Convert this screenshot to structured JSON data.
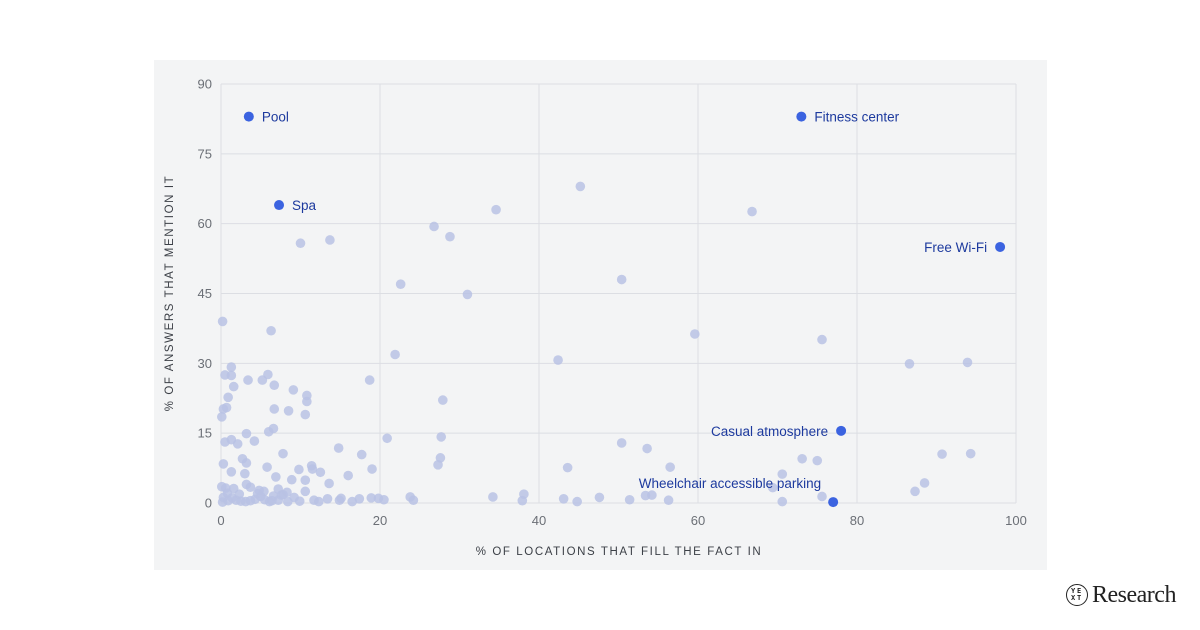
{
  "brand": {
    "logo_text": "Research",
    "logo_mark": [
      "Y",
      "E",
      "X",
      "T"
    ]
  },
  "chart_data": {
    "type": "scatter",
    "title": "",
    "xlabel": "% OF LOCATIONS THAT FILL THE FACT IN",
    "ylabel": "% OF ANSWERS THAT MENTION IT",
    "xlim": [
      0,
      100
    ],
    "ylim": [
      0,
      90
    ],
    "x_ticks": [
      0,
      20,
      40,
      60,
      80,
      100
    ],
    "y_ticks": [
      0,
      15,
      30,
      45,
      60,
      75,
      90
    ],
    "grid": true,
    "colors": {
      "point": "#b9c2e4",
      "highlight": "#3b63e0",
      "highlight_label": "#1d3a9e",
      "grid": "#dcdee3",
      "panel": "#f3f4f5"
    },
    "highlighted": [
      {
        "label": "Pool",
        "x": 3.5,
        "y": 83,
        "label_side": "right"
      },
      {
        "label": "Fitness center",
        "x": 73,
        "y": 83,
        "label_side": "right"
      },
      {
        "label": "Spa",
        "x": 7.3,
        "y": 64,
        "label_side": "right"
      },
      {
        "label": "Free Wi-Fi",
        "x": 98,
        "y": 55,
        "label_side": "left"
      },
      {
        "label": "Casual atmosphere",
        "x": 78,
        "y": 15.5,
        "label_side": "left"
      },
      {
        "label": "Wheelchair accessible parking",
        "x": 77,
        "y": 0.2,
        "label_side": "above-left"
      }
    ],
    "points": [
      [
        45.2,
        68
      ],
      [
        34.6,
        63
      ],
      [
        66.8,
        62.6
      ],
      [
        26.8,
        59.4
      ],
      [
        28.8,
        57.2
      ],
      [
        10,
        55.8
      ],
      [
        13.7,
        56.5
      ],
      [
        50.4,
        48
      ],
      [
        22.6,
        47
      ],
      [
        31,
        44.8
      ],
      [
        0.2,
        39
      ],
      [
        6.3,
        37
      ],
      [
        59.6,
        36.3
      ],
      [
        75.6,
        35.1
      ],
      [
        21.9,
        31.9
      ],
      [
        42.4,
        30.7
      ],
      [
        86.6,
        29.9
      ],
      [
        93.9,
        30.2
      ],
      [
        1.3,
        29.2
      ],
      [
        0.5,
        27.5
      ],
      [
        1.3,
        27.4
      ],
      [
        5.9,
        27.6
      ],
      [
        3.4,
        26.4
      ],
      [
        5.2,
        26.4
      ],
      [
        18.7,
        26.4
      ],
      [
        1.6,
        25
      ],
      [
        6.7,
        25.3
      ],
      [
        9.1,
        24.3
      ],
      [
        10.8,
        23.1
      ],
      [
        0.9,
        22.7
      ],
      [
        10.8,
        21.8
      ],
      [
        27.9,
        22.1
      ],
      [
        0.3,
        20.2
      ],
      [
        0.7,
        20.5
      ],
      [
        6.7,
        20.2
      ],
      [
        8.5,
        19.8
      ],
      [
        10.6,
        19
      ],
      [
        0.1,
        18.5
      ],
      [
        6.6,
        16
      ],
      [
        6,
        15.3
      ],
      [
        3.2,
        14.9
      ],
      [
        1.3,
        13.6
      ],
      [
        0.5,
        13.1
      ],
      [
        2.1,
        12.7
      ],
      [
        4.2,
        13.3
      ],
      [
        20.9,
        13.9
      ],
      [
        27.7,
        14.2
      ],
      [
        50.4,
        12.9
      ],
      [
        53.6,
        11.7
      ],
      [
        14.8,
        11.8
      ],
      [
        17.7,
        10.4
      ],
      [
        7.8,
        10.6
      ],
      [
        2.7,
        9.5
      ],
      [
        3.2,
        8.6
      ],
      [
        0.3,
        8.4
      ],
      [
        5.8,
        7.7
      ],
      [
        27.3,
        8.2
      ],
      [
        27.6,
        9.7
      ],
      [
        11.4,
        8
      ],
      [
        11.5,
        7.3
      ],
      [
        9.8,
        7.2
      ],
      [
        12.5,
        6.6
      ],
      [
        19,
        7.3
      ],
      [
        43.6,
        7.6
      ],
      [
        56.5,
        7.7
      ],
      [
        73.1,
        9.5
      ],
      [
        75,
        9.1
      ],
      [
        90.7,
        10.5
      ],
      [
        94.3,
        10.6
      ],
      [
        1.3,
        6.7
      ],
      [
        3,
        6.3
      ],
      [
        6.9,
        5.6
      ],
      [
        8.9,
        5
      ],
      [
        10.6,
        4.9
      ],
      [
        13.6,
        4.2
      ],
      [
        16,
        5.9
      ],
      [
        0.6,
        3.2
      ],
      [
        1.6,
        3.1
      ],
      [
        3.7,
        3.4
      ],
      [
        4.8,
        2.7
      ],
      [
        5.4,
        2.5
      ],
      [
        7.2,
        3
      ],
      [
        8.3,
        2.3
      ],
      [
        10.6,
        2.5
      ],
      [
        3.2,
        4
      ],
      [
        70.6,
        6.2
      ],
      [
        69.4,
        3.3
      ],
      [
        88.5,
        4.3
      ],
      [
        87.3,
        2.5
      ],
      [
        0.1,
        3.5
      ],
      [
        0.3,
        1.2
      ],
      [
        0.8,
        2.1
      ],
      [
        1.4,
        1.1
      ],
      [
        1.9,
        0.6
      ],
      [
        2.5,
        0.4
      ],
      [
        3.1,
        0.3
      ],
      [
        3.7,
        0.5
      ],
      [
        4.3,
        0.8
      ],
      [
        5,
        1.4
      ],
      [
        5.5,
        0.7
      ],
      [
        6.1,
        0.3
      ],
      [
        6.6,
        1.5
      ],
      [
        7.2,
        0.6
      ],
      [
        7.8,
        1.8
      ],
      [
        8.4,
        0.3
      ],
      [
        9.9,
        0.4
      ],
      [
        12.3,
        0.3
      ],
      [
        13.4,
        0.9
      ],
      [
        14.9,
        0.6
      ],
      [
        15.1,
        1
      ],
      [
        16.5,
        0.3
      ],
      [
        17.4,
        0.9
      ],
      [
        18.9,
        1.1
      ],
      [
        19.8,
        1
      ],
      [
        20.5,
        0.7
      ],
      [
        23.8,
        1.3
      ],
      [
        24.2,
        0.6
      ],
      [
        34.2,
        1.3
      ],
      [
        37.9,
        0.5
      ],
      [
        38.1,
        1.9
      ],
      [
        43.1,
        0.9
      ],
      [
        44.8,
        0.3
      ],
      [
        47.6,
        1.2
      ],
      [
        51.4,
        0.7
      ],
      [
        53.4,
        1.6
      ],
      [
        54.2,
        1.7
      ],
      [
        56.3,
        0.6
      ],
      [
        75.6,
        1.4
      ],
      [
        70.6,
        0.3
      ],
      [
        0.2,
        0.2
      ],
      [
        0.9,
        0.5
      ],
      [
        2.3,
        1.9
      ],
      [
        4.6,
        2
      ],
      [
        6.4,
        0.5
      ],
      [
        7.6,
        1.7
      ],
      [
        9.2,
        1.2
      ],
      [
        11.7,
        0.6
      ]
    ]
  }
}
